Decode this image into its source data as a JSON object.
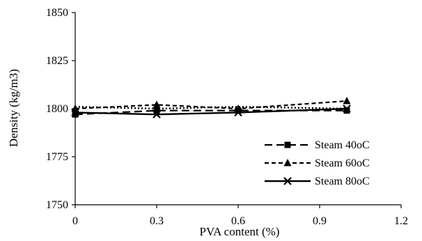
{
  "chart_data": {
    "type": "line",
    "title": "",
    "xlabel": "PVA content (%)",
    "ylabel": "Density (kg/m3)",
    "xlim": [
      0,
      1.2
    ],
    "ylim": [
      1750,
      1850
    ],
    "xticks": [
      0,
      0.3,
      0.6,
      0.9,
      1.2
    ],
    "xtick_labels": [
      "0",
      "0.3",
      "0.6",
      "0.9",
      "1.2"
    ],
    "yticks": [
      1750,
      1775,
      1800,
      1825,
      1850
    ],
    "ytick_labels": [
      "1750",
      "1775",
      "1800",
      "1825",
      "1850"
    ],
    "grid": false,
    "legend_position": "bottom-right",
    "x": [
      0,
      0.3,
      0.6,
      1.0
    ],
    "series": [
      {
        "name": "Steam 40oC",
        "values": [
          1797,
          1799,
          1799,
          1799
        ],
        "line_style": "long-dash",
        "marker": "square",
        "color": "#000000"
      },
      {
        "name": "Steam 60oC",
        "values": [
          1800,
          1802,
          1800,
          1804
        ],
        "line_style": "short-dash",
        "marker": "triangle",
        "color": "#000000"
      },
      {
        "name": "Steam 80oC",
        "values": [
          1798,
          1797,
          1798,
          1800
        ],
        "line_style": "solid",
        "marker": "x",
        "color": "#000000"
      },
      {
        "name": "",
        "values": [
          1801,
          1800,
          1801,
          1800
        ],
        "line_style": "dotted",
        "marker": "none",
        "color": "#000000"
      }
    ]
  }
}
